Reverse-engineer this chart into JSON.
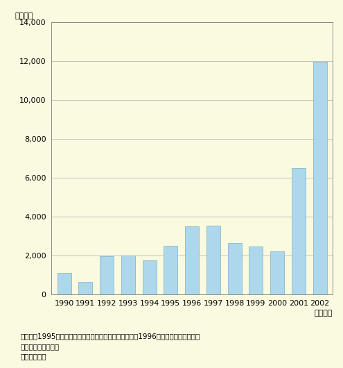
{
  "years": [
    "1990",
    "1991",
    "1992",
    "1993",
    "1994",
    "1995",
    "1996",
    "1997",
    "1998",
    "1999",
    "2000",
    "2001",
    "2002"
  ],
  "values": [
    1100,
    650,
    1950,
    2000,
    1750,
    2500,
    3500,
    3550,
    2650,
    2450,
    2200,
    6500,
    11950
  ],
  "bar_color": "#add8ec",
  "bar_edge_color": "#88b8cc",
  "background_color": "#fafae0",
  "plot_bg_color": "#fafae0",
  "ylim": [
    0,
    14000
  ],
  "yticks": [
    0,
    2000,
    4000,
    6000,
    8000,
    10000,
    12000,
    14000
  ],
  "ylabel": "（トン）",
  "xlabel_suffix": "（年産）",
  "note_line1": "（注）、1995年産までは輸出検査実績から集計した。、1996年産以降は日本貴易月",
  "note_line2": "　表から推計した。",
  "source": "資料）青森県",
  "grid_color": "#aaaaaa",
  "font_size_axis": 8,
  "font_size_note": 7.5,
  "font_size_ylabel": 8
}
